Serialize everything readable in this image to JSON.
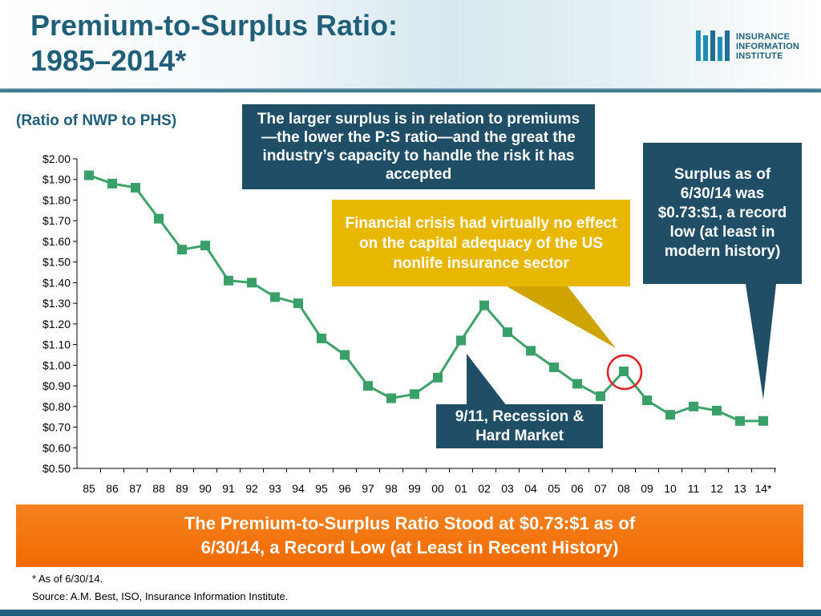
{
  "header": {
    "title_line1": "Premium-to-Surplus Ratio:",
    "title_line2": "1985–2014*"
  },
  "logo": {
    "line1": "INSURANCE",
    "line2": "INFORMATION",
    "line3": "INSTITUTE"
  },
  "callouts": {
    "larger_surplus": "The larger surplus is in relation to premiums—the lower the P:S ratio—and the great the industry’s capacity to handle the risk it has accepted",
    "surplus_record": "Surplus as of 6/30/14 was $0.73:$1, a record low (at least in modern history)",
    "financial_crisis": "Financial crisis had virtually no effect on the capital adequacy of the US nonlife insurance sector",
    "recession": "9/11, Recession & Hard Market"
  },
  "banner": {
    "line1": "The Premium-to-Surplus Ratio Stood at $0.73:$1 as of",
    "line2": "6/30/14, a Record Low (at Least in Recent History)"
  },
  "footnote": "* As of 6/30/14.",
  "source": "Source: A.M. Best, ISO, Insurance Information Institute.",
  "colors": {
    "series": "#3ea36a",
    "marker": "#3aa06a",
    "title": "#1f5f7a",
    "callout_dark": "#1f4e66",
    "callout_gold": "#e8b800",
    "banner": "#f26a00",
    "highlight_circle": "#e02020"
  },
  "chart_data": {
    "type": "line",
    "ylabel": "(Ratio of NWP to PHS)",
    "xlabel": "",
    "ylim": [
      0.5,
      2.0
    ],
    "ytick_labels": [
      "$2.00",
      "$1.90",
      "$1.80",
      "$1.70",
      "$1.60",
      "$1.50",
      "$1.40",
      "$1.30",
      "$1.20",
      "$1.10",
      "$1.00",
      "$0.90",
      "$0.80",
      "$0.70",
      "$0.60",
      "$0.50"
    ],
    "categories": [
      "85",
      "86",
      "87",
      "88",
      "89",
      "90",
      "91",
      "92",
      "93",
      "94",
      "95",
      "96",
      "97",
      "98",
      "99",
      "00",
      "01",
      "02",
      "03",
      "04",
      "05",
      "06",
      "07",
      "08",
      "09",
      "10",
      "11",
      "12",
      "13",
      "14*"
    ],
    "values": [
      1.92,
      1.88,
      1.86,
      1.71,
      1.56,
      1.58,
      1.41,
      1.4,
      1.33,
      1.3,
      1.13,
      1.05,
      0.9,
      0.84,
      0.86,
      0.94,
      1.12,
      1.29,
      1.16,
      1.07,
      0.99,
      0.91,
      0.85,
      0.97,
      0.83,
      0.76,
      0.8,
      0.78,
      0.73,
      0.73
    ],
    "highlight_category": "08",
    "grid": false,
    "legend": "none"
  }
}
